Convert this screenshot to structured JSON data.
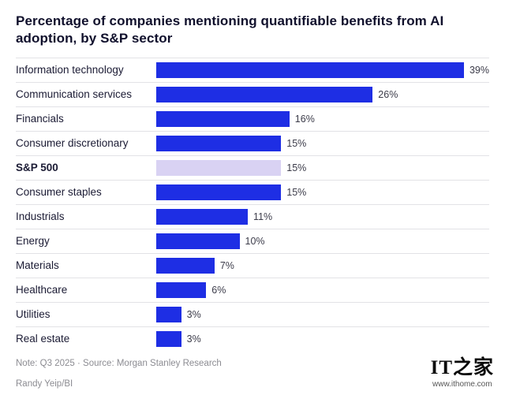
{
  "title": "Percentage of companies mentioning quantifiable benefits from AI adoption, by S&P sector",
  "chart_data": {
    "type": "bar",
    "orientation": "horizontal",
    "title": "Percentage of companies mentioning quantifiable benefits from AI adoption, by S&P sector",
    "categories": [
      "Information technology",
      "Communication services",
      "Financials",
      "Consumer discretionary",
      "S&P 500",
      "Consumer staples",
      "Industrials",
      "Energy",
      "Materials",
      "Healthcare",
      "Utilities",
      "Real estate"
    ],
    "values": [
      39,
      26,
      16,
      15,
      15,
      15,
      11,
      10,
      7,
      6,
      3,
      3
    ],
    "value_suffix": "%",
    "xlim": [
      0,
      40
    ],
    "grid": false,
    "legend": false,
    "highlight_category": "S&P 500",
    "colors": {
      "bar": "#1e2ee4",
      "highlight_bar": "#d9d2f3",
      "separator": "#e2e2e6"
    }
  },
  "rows": [
    {
      "label": "Information technology",
      "value": 39,
      "value_label": "39%",
      "highlight": false
    },
    {
      "label": "Communication services",
      "value": 26,
      "value_label": "26%",
      "highlight": false
    },
    {
      "label": "Financials",
      "value": 16,
      "value_label": "16%",
      "highlight": false
    },
    {
      "label": "Consumer discretionary",
      "value": 15,
      "value_label": "15%",
      "highlight": false
    },
    {
      "label": "S&P 500",
      "value": 15,
      "value_label": "15%",
      "highlight": true
    },
    {
      "label": "Consumer staples",
      "value": 15,
      "value_label": "15%",
      "highlight": false
    },
    {
      "label": "Industrials",
      "value": 11,
      "value_label": "11%",
      "highlight": false
    },
    {
      "label": "Energy",
      "value": 10,
      "value_label": "10%",
      "highlight": false
    },
    {
      "label": "Materials",
      "value": 7,
      "value_label": "7%",
      "highlight": false
    },
    {
      "label": "Healthcare",
      "value": 6,
      "value_label": "6%",
      "highlight": false
    },
    {
      "label": "Utilities",
      "value": 3,
      "value_label": "3%",
      "highlight": false
    },
    {
      "label": "Real estate",
      "value": 3,
      "value_label": "3%",
      "highlight": false
    }
  ],
  "footer": {
    "note": "Note: Q3 2025 · Source: Morgan Stanley Research",
    "credit": "Randy Yeip/BI"
  },
  "watermark": {
    "logo": "IT之家",
    "url": "www.ithome.com"
  }
}
